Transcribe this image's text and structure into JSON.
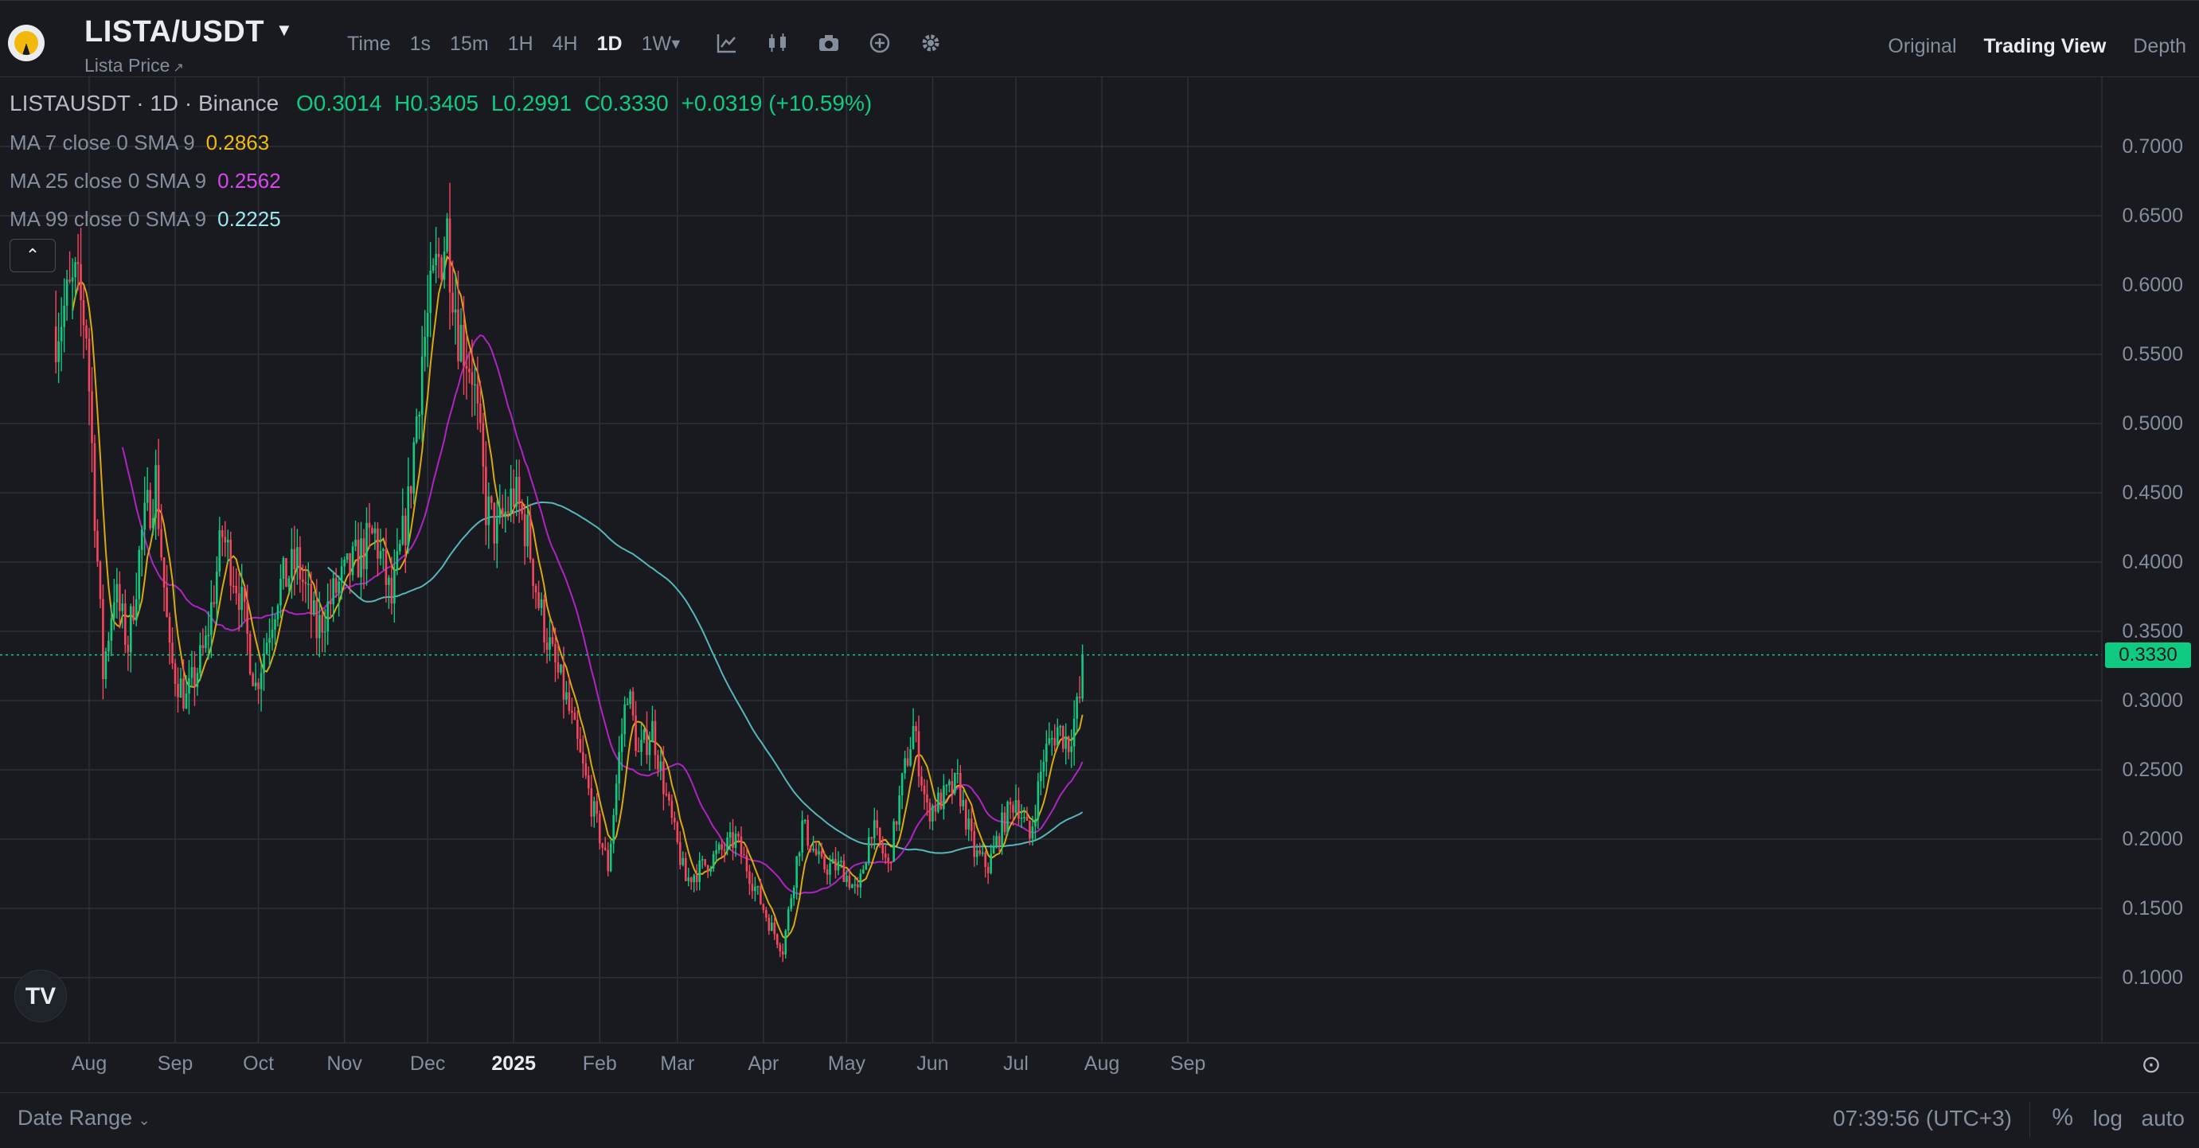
{
  "header": {
    "pair": "LISTA/USDT",
    "subtitle": "Lista Price",
    "intervals": [
      "Time",
      "1s",
      "15m",
      "1H",
      "4H",
      "1D",
      "1W"
    ],
    "active_interval": "1D",
    "view_tabs": [
      "Original",
      "Trading View",
      "Depth"
    ],
    "active_view": "Trading View"
  },
  "legend": {
    "title": "LISTAUSDT · 1D · Binance",
    "open": "O0.3014",
    "high": "H0.3405",
    "low": "L0.2991",
    "close": "C0.3330",
    "change": "+0.0319 (+10.59%)",
    "ma7_label": "MA 7 close 0 SMA 9",
    "ma7_value": "0.2863",
    "ma25_label": "MA 25 close 0 SMA 9",
    "ma25_value": "0.2562",
    "ma99_label": "MA 99 close 0 SMA 9",
    "ma99_value": "0.2225",
    "collapse_icon": "chevron-up-icon"
  },
  "colors": {
    "up": "#0ecb81",
    "down": "#f6465d",
    "ma7": "#f0b90b",
    "ma25": "#c026d3",
    "ma99": "#5ec8c8",
    "grid": "#2b3139",
    "background": "#181a20"
  },
  "current_price": "0.3330",
  "chart_data": {
    "type": "candlestick",
    "interval": "1D",
    "y_ticks": [
      "0.7000",
      "0.6500",
      "0.6000",
      "0.5500",
      "0.5000",
      "0.4500",
      "0.4000",
      "0.3500",
      "0.3000",
      "0.2500",
      "0.2000",
      "0.1500",
      "0.1000"
    ],
    "ylim": [
      0.066,
      0.75
    ],
    "x_ticks": [
      "Aug",
      "Sep",
      "Oct",
      "Nov",
      "Dec",
      "2025",
      "Feb",
      "Mar",
      "Apr",
      "May",
      "Jun",
      "Jul",
      "Aug",
      "Sep"
    ],
    "x_tick_dates": [
      "2024-08-01",
      "2024-09-01",
      "2024-10-01",
      "2024-11-01",
      "2024-12-01",
      "2025-01-01",
      "2025-02-01",
      "2025-03-01",
      "2025-04-01",
      "2025-05-01",
      "2025-06-01",
      "2025-07-01",
      "2025-08-01",
      "2025-09-01"
    ],
    "close_anchors": [
      [
        "2024-07-20",
        0.57
      ],
      [
        "2024-07-27",
        0.6
      ],
      [
        "2024-07-31",
        0.57
      ],
      [
        "2024-08-03",
        0.44
      ],
      [
        "2024-08-06",
        0.32
      ],
      [
        "2024-08-10",
        0.38
      ],
      [
        "2024-08-15",
        0.34
      ],
      [
        "2024-08-20",
        0.42
      ],
      [
        "2024-08-25",
        0.46
      ],
      [
        "2024-08-30",
        0.33
      ],
      [
        "2024-09-05",
        0.3
      ],
      [
        "2024-09-12",
        0.34
      ],
      [
        "2024-09-18",
        0.42
      ],
      [
        "2024-09-24",
        0.38
      ],
      [
        "2024-09-30",
        0.31
      ],
      [
        "2024-10-08",
        0.38
      ],
      [
        "2024-10-15",
        0.4
      ],
      [
        "2024-10-22",
        0.35
      ],
      [
        "2024-10-29",
        0.38
      ],
      [
        "2024-11-05",
        0.4
      ],
      [
        "2024-11-12",
        0.42
      ],
      [
        "2024-11-18",
        0.37
      ],
      [
        "2024-11-24",
        0.44
      ],
      [
        "2024-11-29",
        0.55
      ],
      [
        "2024-12-04",
        0.61
      ],
      [
        "2024-12-08",
        0.64
      ],
      [
        "2024-12-12",
        0.57
      ],
      [
        "2024-12-17",
        0.54
      ],
      [
        "2024-12-22",
        0.44
      ],
      [
        "2024-12-26",
        0.42
      ],
      [
        "2025-01-01",
        0.45
      ],
      [
        "2025-01-06",
        0.42
      ],
      [
        "2025-01-10",
        0.37
      ],
      [
        "2025-01-15",
        0.33
      ],
      [
        "2025-01-20",
        0.3
      ],
      [
        "2025-01-26",
        0.25
      ],
      [
        "2025-01-31",
        0.21
      ],
      [
        "2025-02-04",
        0.18
      ],
      [
        "2025-02-08",
        0.26
      ],
      [
        "2025-02-11",
        0.31
      ],
      [
        "2025-02-15",
        0.26
      ],
      [
        "2025-02-20",
        0.28
      ],
      [
        "2025-02-26",
        0.22
      ],
      [
        "2025-03-04",
        0.17
      ],
      [
        "2025-03-10",
        0.18
      ],
      [
        "2025-03-16",
        0.19
      ],
      [
        "2025-03-22",
        0.2
      ],
      [
        "2025-03-28",
        0.17
      ],
      [
        "2025-04-03",
        0.14
      ],
      [
        "2025-04-08",
        0.12
      ],
      [
        "2025-04-11",
        0.16
      ],
      [
        "2025-04-15",
        0.21
      ],
      [
        "2025-04-22",
        0.18
      ],
      [
        "2025-04-29",
        0.18
      ],
      [
        "2025-05-05",
        0.16
      ],
      [
        "2025-05-10",
        0.21
      ],
      [
        "2025-05-16",
        0.18
      ],
      [
        "2025-05-21",
        0.24
      ],
      [
        "2025-05-25",
        0.28
      ],
      [
        "2025-05-30",
        0.22
      ],
      [
        "2025-06-05",
        0.23
      ],
      [
        "2025-06-10",
        0.24
      ],
      [
        "2025-06-16",
        0.19
      ],
      [
        "2025-06-21",
        0.18
      ],
      [
        "2025-06-26",
        0.21
      ],
      [
        "2025-07-01",
        0.23
      ],
      [
        "2025-07-06",
        0.2
      ],
      [
        "2025-07-11",
        0.26
      ],
      [
        "2025-07-16",
        0.28
      ],
      [
        "2025-07-20",
        0.27
      ],
      [
        "2025-07-24",
        0.3014
      ],
      [
        "2025-07-25",
        0.333
      ]
    ],
    "last_candle": {
      "open": 0.3014,
      "high": 0.3405,
      "low": 0.2991,
      "close": 0.333
    }
  },
  "footer": {
    "date_range": "Date Range",
    "clock": "07:39:56 (UTC+3)",
    "scale_percent": "%",
    "scale_log": "log",
    "scale_auto": "auto"
  }
}
